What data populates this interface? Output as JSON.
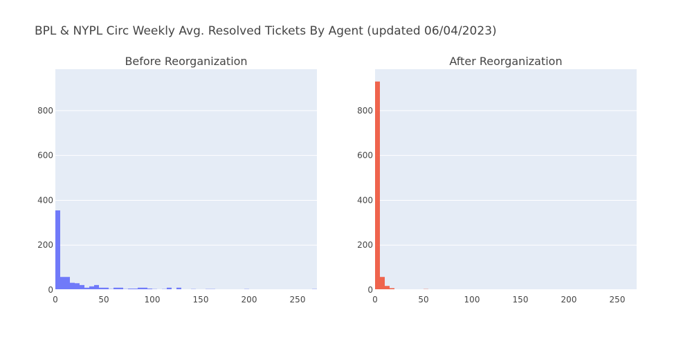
{
  "title": "BPL & NYPL Circ Weekly Avg. Resolved Tickets By Agent (updated 06/04/2023)",
  "chart_data": [
    {
      "type": "bar",
      "subtitle": "Before Reorganization",
      "color": "#636efa",
      "bin_width": 5,
      "xlim": [
        0,
        270
      ],
      "ylim": [
        0,
        985
      ],
      "xticks": [
        0,
        50,
        100,
        150,
        200,
        250
      ],
      "yticks": [
        0,
        200,
        400,
        600,
        800
      ],
      "bins": [
        {
          "x0": 0,
          "count": 355
        },
        {
          "x0": 5,
          "count": 58
        },
        {
          "x0": 10,
          "count": 58
        },
        {
          "x0": 15,
          "count": 32
        },
        {
          "x0": 20,
          "count": 30
        },
        {
          "x0": 25,
          "count": 22
        },
        {
          "x0": 30,
          "count": 10
        },
        {
          "x0": 35,
          "count": 16
        },
        {
          "x0": 40,
          "count": 22
        },
        {
          "x0": 45,
          "count": 10
        },
        {
          "x0": 50,
          "count": 10
        },
        {
          "x0": 55,
          "count": 4
        },
        {
          "x0": 60,
          "count": 10
        },
        {
          "x0": 65,
          "count": 10
        },
        {
          "x0": 70,
          "count": 4
        },
        {
          "x0": 75,
          "count": 6
        },
        {
          "x0": 80,
          "count": 6
        },
        {
          "x0": 85,
          "count": 10
        },
        {
          "x0": 90,
          "count": 10
        },
        {
          "x0": 95,
          "count": 6
        },
        {
          "x0": 100,
          "count": 4
        },
        {
          "x0": 110,
          "count": 4
        },
        {
          "x0": 115,
          "count": 10
        },
        {
          "x0": 120,
          "count": 2
        },
        {
          "x0": 125,
          "count": 10
        },
        {
          "x0": 130,
          "count": 2
        },
        {
          "x0": 135,
          "count": 2
        },
        {
          "x0": 140,
          "count": 4
        },
        {
          "x0": 145,
          "count": 2
        },
        {
          "x0": 150,
          "count": 2
        },
        {
          "x0": 155,
          "count": 4
        },
        {
          "x0": 160,
          "count": 4
        },
        {
          "x0": 170,
          "count": 2
        },
        {
          "x0": 175,
          "count": 2
        },
        {
          "x0": 195,
          "count": 4
        },
        {
          "x0": 265,
          "count": 4
        }
      ]
    },
    {
      "type": "bar",
      "subtitle": "After Reorganization",
      "color": "#ef553b",
      "bin_width": 5,
      "xlim": [
        0,
        270
      ],
      "ylim": [
        0,
        985
      ],
      "xticks": [
        0,
        50,
        100,
        150,
        200,
        250
      ],
      "yticks": [
        0,
        200,
        400,
        600,
        800
      ],
      "bins": [
        {
          "x0": 0,
          "count": 930
        },
        {
          "x0": 5,
          "count": 58
        },
        {
          "x0": 10,
          "count": 18
        },
        {
          "x0": 15,
          "count": 8
        },
        {
          "x0": 25,
          "count": 2
        },
        {
          "x0": 30,
          "count": 2
        },
        {
          "x0": 40,
          "count": 2
        },
        {
          "x0": 50,
          "count": 4
        },
        {
          "x0": 100,
          "count": 2
        },
        {
          "x0": 120,
          "count": 2
        }
      ]
    }
  ]
}
